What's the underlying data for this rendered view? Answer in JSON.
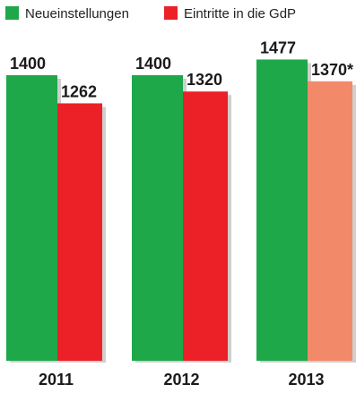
{
  "chart_data": {
    "type": "bar",
    "categories": [
      "2011",
      "2012",
      "2013"
    ],
    "series": [
      {
        "name": "Neueinstellungen",
        "values": [
          1400,
          1400,
          1477
        ],
        "color": "#1ea84a",
        "labels": [
          "1400",
          "1400",
          "1477"
        ]
      },
      {
        "name": "Eintritte in die GdP",
        "values": [
          1262,
          1320,
          1370
        ],
        "color": "#ec2027",
        "labels": [
          "1262",
          "1320",
          "1370*"
        ],
        "point_colors": [
          "#ec2027",
          "#ec2027",
          "#f28a6a"
        ]
      }
    ],
    "legend_position": "top-left",
    "grid": false,
    "shadow_color": "#cfcfcf"
  }
}
